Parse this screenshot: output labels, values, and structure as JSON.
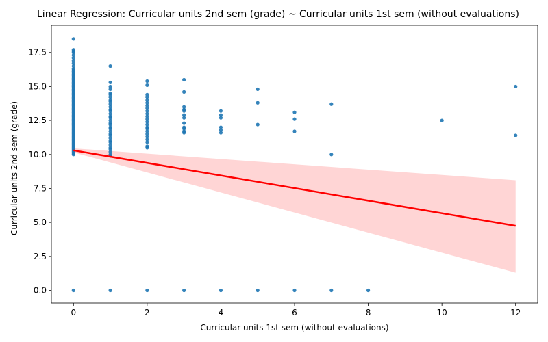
{
  "chart_data": {
    "type": "scatter",
    "title": "Linear Regression: Curricular units 2nd sem (grade) ~ Curricular units 1st sem (without evaluations)",
    "xlabel": "Curricular units 1st sem (without evaluations)",
    "ylabel": "Curricular units 2nd sem (grade)",
    "xlim": [
      -0.6,
      12.6
    ],
    "ylim": [
      -0.93,
      19.5
    ],
    "xticks": [
      0,
      2,
      4,
      6,
      8,
      10,
      12
    ],
    "xtick_labels": [
      "0",
      "2",
      "4",
      "6",
      "8",
      "10",
      "12"
    ],
    "yticks": [
      0,
      2.5,
      5,
      7.5,
      10,
      12.5,
      15,
      17.5
    ],
    "ytick_labels": [
      "0.0",
      "2.5",
      "5.0",
      "7.5",
      "10.0",
      "12.5",
      "15.0",
      "17.5"
    ],
    "grid": false,
    "colors": {
      "points": "#1f77b4",
      "line": "#ff0000",
      "band": "#ffb3b3"
    },
    "scatter_columns": [
      {
        "x": 0,
        "ys": [
          10.0,
          10.1,
          10.2,
          10.3,
          10.4,
          10.5,
          10.6,
          10.7,
          10.8,
          10.9,
          11.0,
          11.1,
          11.2,
          11.3,
          11.4,
          11.5,
          11.6,
          11.7,
          11.8,
          11.9,
          12.0,
          12.1,
          12.2,
          12.3,
          12.4,
          12.5,
          12.6,
          12.7,
          12.8,
          12.9,
          13.0,
          13.1,
          13.2,
          13.3,
          13.4,
          13.5,
          13.6,
          13.7,
          13.8,
          13.9,
          14.0,
          14.1,
          14.2,
          14.3,
          14.4,
          14.5,
          14.6,
          14.7,
          14.8,
          14.9,
          15.0,
          15.1,
          15.2,
          15.3,
          15.4,
          15.5,
          15.6,
          15.7,
          15.8,
          15.9,
          16.0,
          16.1,
          16.2,
          16.3,
          16.5,
          16.7,
          16.9,
          17.1,
          17.3,
          17.5,
          17.6,
          17.7,
          18.5
        ]
      },
      {
        "x": 1,
        "ys": [
          9.9,
          10.0,
          10.2,
          10.4,
          10.5,
          10.7,
          10.9,
          11.0,
          11.2,
          11.4,
          11.5,
          11.7,
          11.9,
          12.0,
          12.2,
          12.3,
          12.5,
          12.7,
          12.8,
          13.0,
          13.2,
          13.3,
          13.5,
          13.7,
          13.9,
          14.0,
          14.2,
          14.4,
          14.5,
          14.8,
          15.0,
          15.3,
          16.5
        ]
      },
      {
        "x": 2,
        "ys": [
          10.5,
          10.6,
          10.9,
          11.1,
          11.3,
          11.5,
          11.7,
          11.9,
          12.0,
          12.2,
          12.4,
          12.6,
          12.8,
          13.0,
          13.2,
          13.4,
          13.6,
          13.8,
          14.0,
          14.2,
          14.4,
          15.1,
          15.4
        ]
      },
      {
        "x": 3,
        "ys": [
          11.6,
          11.7,
          11.9,
          12.0,
          12.3,
          12.7,
          12.9,
          13.2,
          13.3,
          13.5,
          14.6,
          15.5
        ]
      },
      {
        "x": 4,
        "ys": [
          11.6,
          11.8,
          12.0,
          12.7,
          12.9,
          13.2
        ]
      },
      {
        "x": 5,
        "ys": [
          12.2,
          13.8,
          14.8
        ]
      },
      {
        "x": 6,
        "ys": [
          11.7,
          12.6,
          13.1
        ]
      },
      {
        "x": 7,
        "ys": [
          10.0,
          13.7
        ]
      },
      {
        "x": 10,
        "ys": [
          12.5
        ]
      },
      {
        "x": 12,
        "ys": [
          11.4,
          15.0
        ]
      }
    ],
    "zero_points_x": [
      0,
      1,
      2,
      3,
      4,
      5,
      6,
      7,
      8
    ],
    "regression": {
      "x": [
        0,
        12
      ],
      "y": [
        10.3,
        4.75
      ]
    },
    "confidence_band": {
      "x": [
        0,
        12
      ],
      "upper": [
        10.45,
        8.1
      ],
      "lower": [
        10.15,
        1.3
      ]
    }
  }
}
